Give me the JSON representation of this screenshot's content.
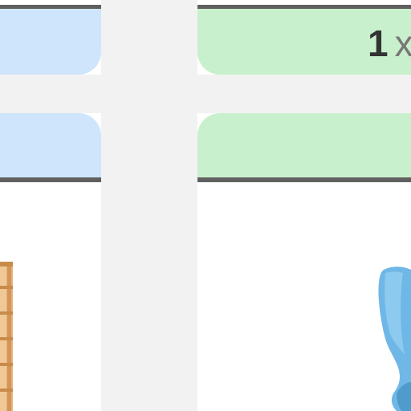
{
  "left_card": {
    "product": "wooden-shelf"
  },
  "right_card": {
    "quantity": "1",
    "times_symbol": "x",
    "product": "blue-chair"
  },
  "colors": {
    "background": "#f2f2f2",
    "card": "#ffffff",
    "bar": "#606060",
    "blue_panel": "#cfe5fb",
    "green_panel": "#c8f0cc",
    "chair": "#6fb7e6",
    "shelf": "#e2a864"
  }
}
